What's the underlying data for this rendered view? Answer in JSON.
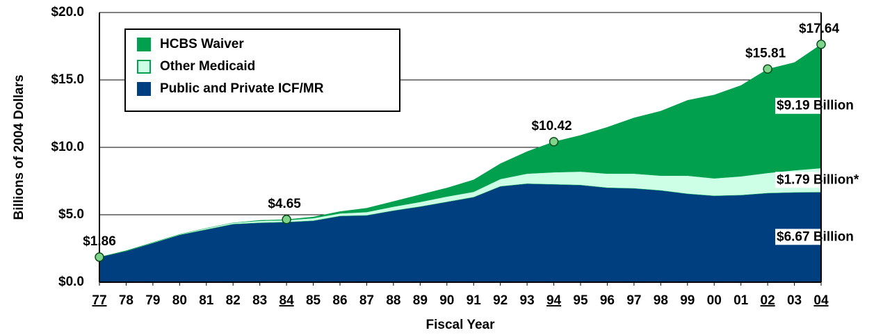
{
  "chart_data": {
    "type": "stacked_area",
    "y_label": "Billions of 2004 Dollars",
    "x_label": "Fiscal Year",
    "categories": [
      "77",
      "78",
      "79",
      "80",
      "81",
      "82",
      "83",
      "84",
      "85",
      "86",
      "87",
      "88",
      "89",
      "90",
      "91",
      "92",
      "93",
      "94",
      "95",
      "96",
      "97",
      "98",
      "99",
      "00",
      "01",
      "02",
      "03",
      "04"
    ],
    "series": [
      {
        "name": "Public and Private ICF/MR",
        "color": "#003f7f",
        "values": [
          1.86,
          2.3,
          2.9,
          3.5,
          3.9,
          4.3,
          4.4,
          4.45,
          4.55,
          4.9,
          4.95,
          5.3,
          5.6,
          5.95,
          6.3,
          7.1,
          7.3,
          7.25,
          7.2,
          7.0,
          6.95,
          6.8,
          6.55,
          6.4,
          6.45,
          6.6,
          6.65,
          6.67
        ],
        "end_label": "$6.67 Billion"
      },
      {
        "name": "Other Medicaid",
        "color": "#ccffe6",
        "values": [
          0,
          0.02,
          0.05,
          0.05,
          0.1,
          0.1,
          0.15,
          0.15,
          0.2,
          0.2,
          0.25,
          0.3,
          0.35,
          0.4,
          0.4,
          0.55,
          0.75,
          0.9,
          1.0,
          1.05,
          1.1,
          1.1,
          1.35,
          1.3,
          1.4,
          1.5,
          1.65,
          1.79
        ],
        "end_label": "$1.79 Billion*"
      },
      {
        "name": "HCBS Waiver",
        "color": "#00a04e",
        "values": [
          0,
          0.03,
          0,
          0,
          0,
          0,
          0.05,
          0.05,
          0.1,
          0.15,
          0.3,
          0.4,
          0.55,
          0.65,
          0.9,
          1.15,
          1.65,
          2.27,
          2.7,
          3.45,
          4.15,
          4.8,
          5.6,
          6.2,
          6.75,
          7.71,
          8.0,
          9.19
        ],
        "end_label": "$9.19 Billion"
      }
    ],
    "annotations": [
      {
        "x": "77",
        "y": 1.86,
        "label": "$1.86"
      },
      {
        "x": "84",
        "y": 4.65,
        "label": "$4.65"
      },
      {
        "x": "94",
        "y": 10.42,
        "label": "$10.42"
      },
      {
        "x": "02",
        "y": 15.81,
        "label": "$15.81"
      },
      {
        "x": "04",
        "y": 17.64,
        "label": "$17.64"
      }
    ],
    "ylim": [
      0,
      20
    ],
    "yticks": [
      {
        "value": 0,
        "label": "$0.0"
      },
      {
        "value": 5,
        "label": "$5.0"
      },
      {
        "value": 10,
        "label": "$10.0"
      },
      {
        "value": 15,
        "label": "$15.0"
      },
      {
        "value": 20,
        "label": "$20.0"
      }
    ],
    "grid": true,
    "legend": "upper left"
  }
}
